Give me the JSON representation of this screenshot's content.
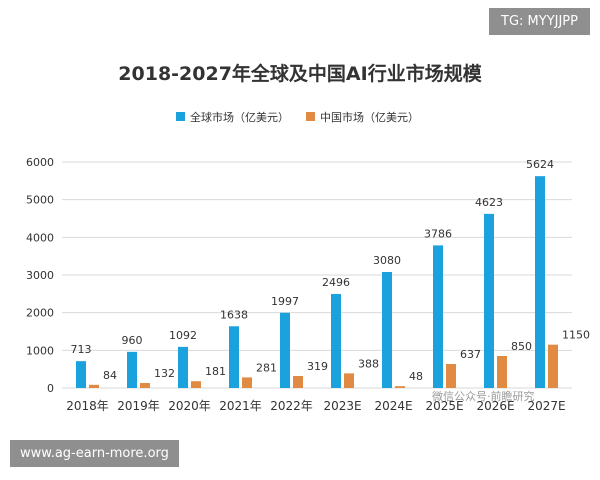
{
  "overlay": {
    "top_tag": "TG: MYYJJPP",
    "bottom_site": "www.ag-earn-more.org",
    "watermark": "微信公众号·前瞻研究"
  },
  "colors": {
    "global": "#1ba2dc",
    "china": "#e08a43",
    "grid": "#d9d9d9",
    "text": "#333333"
  },
  "chart_data": {
    "type": "bar",
    "title": "2018-2027年全球及中国AI行业市场规模",
    "categories": [
      "2018年",
      "2019年",
      "2020年",
      "2021年",
      "2022年",
      "2023E",
      "2024E",
      "2025E",
      "2026E",
      "2027E"
    ],
    "series": [
      {
        "name": "全球市场（亿美元）",
        "values": [
          713,
          960,
          1092,
          1638,
          1997,
          2496,
          3080,
          3786,
          4623,
          5624
        ]
      },
      {
        "name": "中国市场（亿美元）",
        "values": [
          84,
          132,
          181,
          281,
          319,
          388,
          48,
          637,
          850,
          1150
        ]
      }
    ],
    "ylim": [
      0,
      6000
    ],
    "yticks": [
      0,
      1000,
      2000,
      3000,
      4000,
      5000,
      6000
    ],
    "legend_position": "top-center",
    "grid": true
  }
}
